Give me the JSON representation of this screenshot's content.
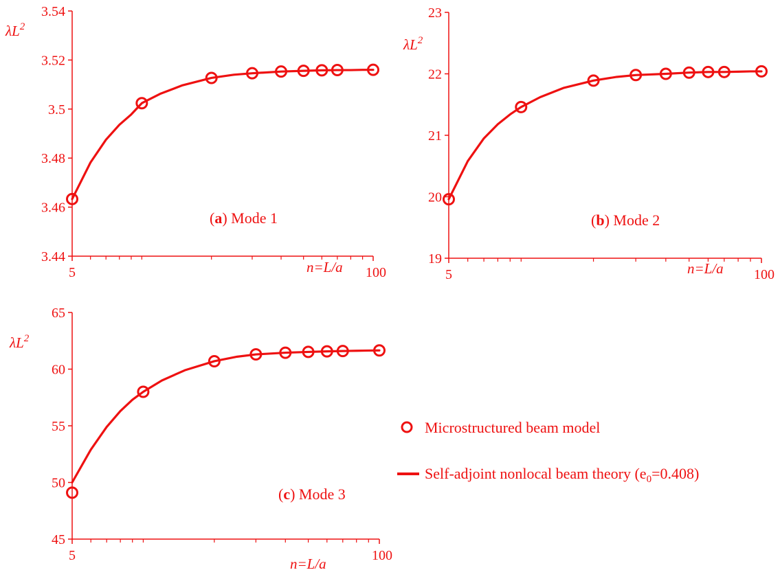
{
  "chart_data": [
    {
      "type": "line",
      "annotation_letter": "a",
      "annotation_text": "Mode 1",
      "ylabel": "λL",
      "ylabel_sup": "2",
      "xlabel": "n=L/a",
      "xscale": "log",
      "xlim": [
        5,
        100
      ],
      "ylim": [
        3.44,
        3.54
      ],
      "yticks": [
        3.44,
        3.46,
        3.48,
        3.5,
        3.52,
        3.54
      ],
      "ytick_labels": [
        "3.44",
        "3.46",
        "3.48",
        "3.5",
        "3.52",
        "3.54"
      ],
      "xtick_labels": [
        "5",
        "100"
      ],
      "x_minor_ticks": [
        6,
        7,
        8,
        9,
        10,
        20,
        30,
        40,
        50,
        60,
        70,
        80,
        90
      ],
      "series": [
        {
          "marker": "circle",
          "x": [
            5,
            10,
            20,
            30,
            40,
            50,
            60,
            70,
            100
          ],
          "y": [
            3.4633,
            3.5024,
            3.5127,
            3.5146,
            3.5153,
            3.5156,
            3.5158,
            3.5159,
            3.516
          ]
        },
        {
          "marker": "none",
          "x": [
            5,
            6,
            7,
            8,
            9,
            10,
            12,
            15,
            20,
            25,
            30,
            40,
            50,
            60,
            70,
            80,
            90,
            100
          ],
          "y": [
            3.4633,
            3.4782,
            3.4875,
            3.4936,
            3.4978,
            3.5024,
            3.5062,
            3.5097,
            3.5127,
            3.514,
            3.5146,
            3.5153,
            3.5156,
            3.5158,
            3.5159,
            3.5159,
            3.516,
            3.516
          ]
        }
      ]
    },
    {
      "type": "line",
      "annotation_letter": "b",
      "annotation_text": "Mode 2",
      "ylabel": "λL",
      "ylabel_sup": "2",
      "xlabel": "n=L/a",
      "xscale": "log",
      "xlim": [
        5,
        100
      ],
      "ylim": [
        19,
        23
      ],
      "yticks": [
        19,
        20,
        21,
        22,
        23
      ],
      "ytick_labels": [
        "19",
        "20",
        "21",
        "22",
        "23"
      ],
      "xtick_labels": [
        "5",
        "100"
      ],
      "x_minor_ticks": [
        6,
        7,
        8,
        9,
        10,
        20,
        30,
        40,
        50,
        60,
        70,
        80,
        90
      ],
      "series": [
        {
          "marker": "circle",
          "x": [
            5,
            10,
            20,
            30,
            40,
            50,
            60,
            70,
            100
          ],
          "y": [
            19.96,
            21.46,
            21.89,
            21.98,
            22.0,
            22.02,
            22.03,
            22.03,
            22.04
          ]
        },
        {
          "marker": "none",
          "x": [
            5,
            6,
            7,
            8,
            9,
            10,
            12,
            15,
            20,
            25,
            30,
            40,
            50,
            60,
            70,
            80,
            90,
            100
          ],
          "y": [
            19.96,
            20.58,
            20.95,
            21.18,
            21.34,
            21.46,
            21.62,
            21.77,
            21.89,
            21.95,
            21.98,
            22.0,
            22.02,
            22.03,
            22.03,
            22.035,
            22.04,
            22.04
          ]
        }
      ]
    },
    {
      "type": "line",
      "annotation_letter": "c",
      "annotation_text": "Mode 3",
      "ylabel": "λL",
      "ylabel_sup": "2",
      "xlabel": "n=L/a",
      "xscale": "log",
      "xlim": [
        5,
        100
      ],
      "ylim": [
        45,
        65
      ],
      "yticks": [
        45,
        50,
        55,
        60,
        65
      ],
      "ytick_labels": [
        "45",
        "50",
        "55",
        "60",
        "65"
      ],
      "xtick_labels": [
        "5",
        "100"
      ],
      "x_minor_ticks": [
        6,
        7,
        8,
        9,
        10,
        20,
        30,
        40,
        50,
        60,
        70,
        80,
        90
      ],
      "series": [
        {
          "marker": "circle",
          "x": [
            5,
            10,
            20,
            30,
            40,
            50,
            60,
            70,
            100
          ],
          "y": [
            49.1,
            58.0,
            60.7,
            61.3,
            61.45,
            61.52,
            61.57,
            61.6,
            61.65
          ]
        },
        {
          "marker": "none",
          "x": [
            5,
            6,
            7,
            8,
            9,
            10,
            12,
            15,
            20,
            25,
            30,
            40,
            50,
            60,
            70,
            80,
            90,
            100
          ],
          "y": [
            50.0,
            52.9,
            54.9,
            56.3,
            57.3,
            58.0,
            59.0,
            59.9,
            60.7,
            61.1,
            61.3,
            61.45,
            61.52,
            61.57,
            61.6,
            61.62,
            61.64,
            61.65
          ]
        }
      ]
    }
  ],
  "legend": {
    "items": [
      {
        "marker": "circle",
        "label": "Microstructured beam model"
      },
      {
        "marker": "line",
        "label": "Self-adjoint nonlocal beam theory  (e",
        "label_sub": "0",
        "label_tail": "=0.408)"
      }
    ]
  },
  "colors": {
    "main": "#ee1111"
  }
}
